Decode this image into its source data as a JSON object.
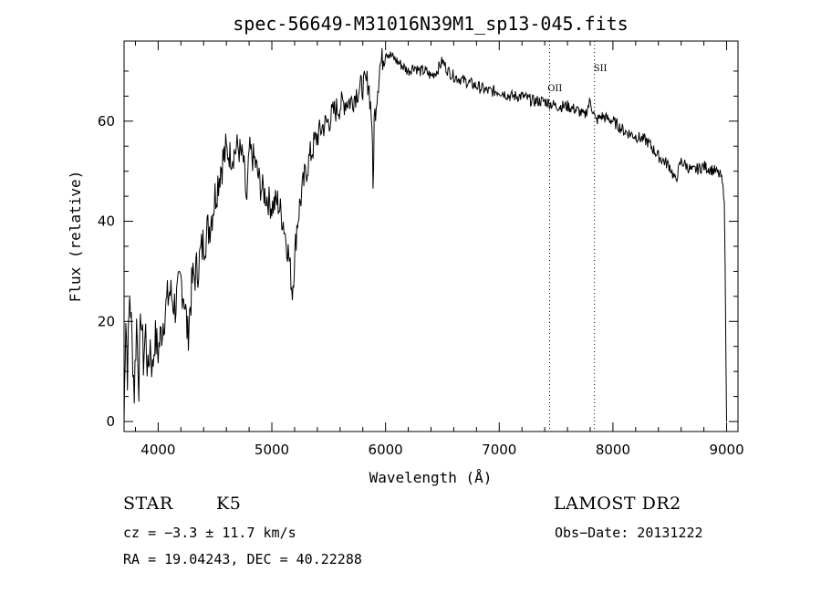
{
  "chart_data": {
    "type": "line",
    "title": "spec-56649-M31016N39M1_sp13-045.fits",
    "xlabel": "Wavelength (Å)",
    "ylabel": "Flux (relative)",
    "xlim": [
      3700,
      9100
    ],
    "ylim": [
      -2,
      76
    ],
    "x_ticks": [
      4000,
      5000,
      6000,
      7000,
      8000,
      9000
    ],
    "y_ticks": [
      0,
      20,
      40,
      60
    ],
    "grid": false,
    "series": [
      {
        "points": [
          [
            3700,
            0
          ],
          [
            3715,
            22
          ],
          [
            3730,
            10
          ],
          [
            3750,
            26
          ],
          [
            3770,
            16
          ],
          [
            3790,
            6
          ],
          [
            3810,
            20
          ],
          [
            3830,
            8
          ],
          [
            3850,
            22
          ],
          [
            3870,
            12
          ],
          [
            3890,
            18
          ],
          [
            3910,
            9
          ],
          [
            3930,
            16
          ],
          [
            3950,
            10
          ],
          [
            3970,
            17
          ],
          [
            4000,
            14
          ],
          [
            4050,
            21
          ],
          [
            4100,
            26
          ],
          [
            4150,
            23
          ],
          [
            4200,
            28
          ],
          [
            4230,
            25
          ],
          [
            4260,
            17
          ],
          [
            4300,
            28
          ],
          [
            4350,
            31
          ],
          [
            4400,
            36
          ],
          [
            4450,
            39
          ],
          [
            4500,
            45
          ],
          [
            4550,
            51
          ],
          [
            4600,
            54
          ],
          [
            4650,
            53
          ],
          [
            4700,
            55
          ],
          [
            4750,
            52
          ],
          [
            4780,
            43
          ],
          [
            4800,
            54
          ],
          [
            4850,
            52
          ],
          [
            4900,
            47
          ],
          [
            4950,
            45
          ],
          [
            5000,
            43
          ],
          [
            5050,
            44
          ],
          [
            5100,
            40
          ],
          [
            5150,
            33
          ],
          [
            5180,
            26
          ],
          [
            5220,
            39
          ],
          [
            5250,
            44
          ],
          [
            5300,
            50
          ],
          [
            5350,
            54
          ],
          [
            5400,
            57
          ],
          [
            5450,
            59
          ],
          [
            5500,
            60
          ],
          [
            5550,
            62
          ],
          [
            5600,
            63
          ],
          [
            5650,
            64
          ],
          [
            5700,
            64
          ],
          [
            5750,
            66
          ],
          [
            5800,
            67
          ],
          [
            5850,
            68
          ],
          [
            5880,
            60
          ],
          [
            5890,
            46
          ],
          [
            5900,
            60
          ],
          [
            5950,
            71
          ],
          [
            6000,
            74
          ],
          [
            6050,
            73
          ],
          [
            6100,
            72
          ],
          [
            6150,
            71
          ],
          [
            6200,
            70
          ],
          [
            6250,
            71
          ],
          [
            6300,
            70
          ],
          [
            6350,
            70
          ],
          [
            6400,
            69
          ],
          [
            6450,
            70
          ],
          [
            6500,
            72
          ],
          [
            6550,
            70
          ],
          [
            6600,
            69
          ],
          [
            6700,
            68
          ],
          [
            6800,
            67
          ],
          [
            6900,
            66
          ],
          [
            7000,
            66
          ],
          [
            7100,
            65
          ],
          [
            7200,
            65
          ],
          [
            7300,
            64
          ],
          [
            7400,
            64
          ],
          [
            7500,
            63
          ],
          [
            7600,
            63
          ],
          [
            7700,
            62
          ],
          [
            7750,
            61
          ],
          [
            7800,
            64
          ],
          [
            7850,
            60
          ],
          [
            7900,
            61
          ],
          [
            8000,
            60
          ],
          [
            8100,
            58
          ],
          [
            8200,
            57
          ],
          [
            8300,
            56
          ],
          [
            8400,
            53
          ],
          [
            8500,
            51
          ],
          [
            8550,
            48
          ],
          [
            8600,
            52
          ],
          [
            8650,
            51
          ],
          [
            8700,
            50
          ],
          [
            8800,
            51
          ],
          [
            8900,
            50
          ],
          [
            8950,
            49
          ],
          [
            8980,
            45
          ],
          [
            9000,
            0
          ]
        ]
      }
    ],
    "vlines": [
      7443,
      7838
    ],
    "annotations": [
      {
        "text": "OII",
        "x": 7425,
        "y": 66
      },
      {
        "text": "SII",
        "x": 7830,
        "y": 70
      }
    ]
  },
  "info": {
    "star_class": "STAR",
    "spec_type": "K5",
    "survey": "LAMOST DR2",
    "cz": "cz = −3.3 ± 11.7 km/s",
    "obs_date": "Obs−Date: 20131222",
    "coords": "RA =  19.04243, DEC =  40.22288"
  }
}
